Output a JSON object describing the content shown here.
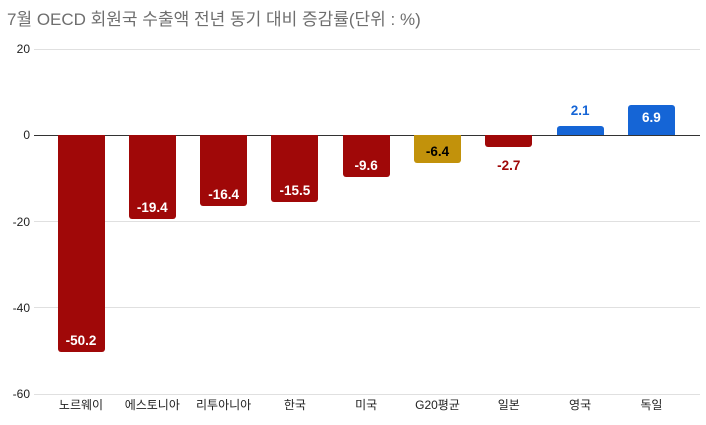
{
  "chart_data": {
    "type": "bar",
    "title": "7월 OECD 회원국 수출액 전년 동기 대비 증감률(단위 : %)",
    "categories": [
      "노르웨이",
      "에스토니아",
      "리투아니아",
      "한국",
      "미국",
      "G20평균",
      "일본",
      "영국",
      "독일"
    ],
    "values": [
      -50.2,
      -19.4,
      -16.4,
      -15.5,
      -9.6,
      -6.4,
      -2.7,
      2.1,
      6.9
    ],
    "value_labels": [
      "-50.2",
      "-19.4",
      "-16.4",
      "-15.5",
      "-9.6",
      "-6.4",
      "-2.7",
      "2.1",
      "6.9"
    ],
    "bar_colors": [
      "#a00808",
      "#a00808",
      "#a00808",
      "#a00808",
      "#a00808",
      "#c2920b",
      "#a00808",
      "#1565d6",
      "#1565d6"
    ],
    "value_label_colors": [
      "#ffffff",
      "#ffffff",
      "#ffffff",
      "#ffffff",
      "#ffffff",
      "#000000",
      "#a00808",
      "#1565d6",
      "#ffffff"
    ],
    "value_label_placements": [
      "inside",
      "inside",
      "inside",
      "inside",
      "inside",
      "inside",
      "outside",
      "outside",
      "inside"
    ],
    "xlabel": "",
    "ylabel": "",
    "ylim": [
      -60,
      20
    ],
    "yticks": [
      20,
      0,
      -20,
      -40,
      -60
    ],
    "ytick_labels": [
      "20",
      "0",
      "-20",
      "-40",
      "-60"
    ],
    "grid": true,
    "legend": "none",
    "colors": {
      "negative_bar": "#a00808",
      "g20_average_bar": "#c2920b",
      "positive_bar": "#1565d6",
      "grid_line": "#e0e0e0",
      "zero_line": "#333333",
      "axis_text": "#222222",
      "title_text": "#6e6e6e"
    }
  }
}
